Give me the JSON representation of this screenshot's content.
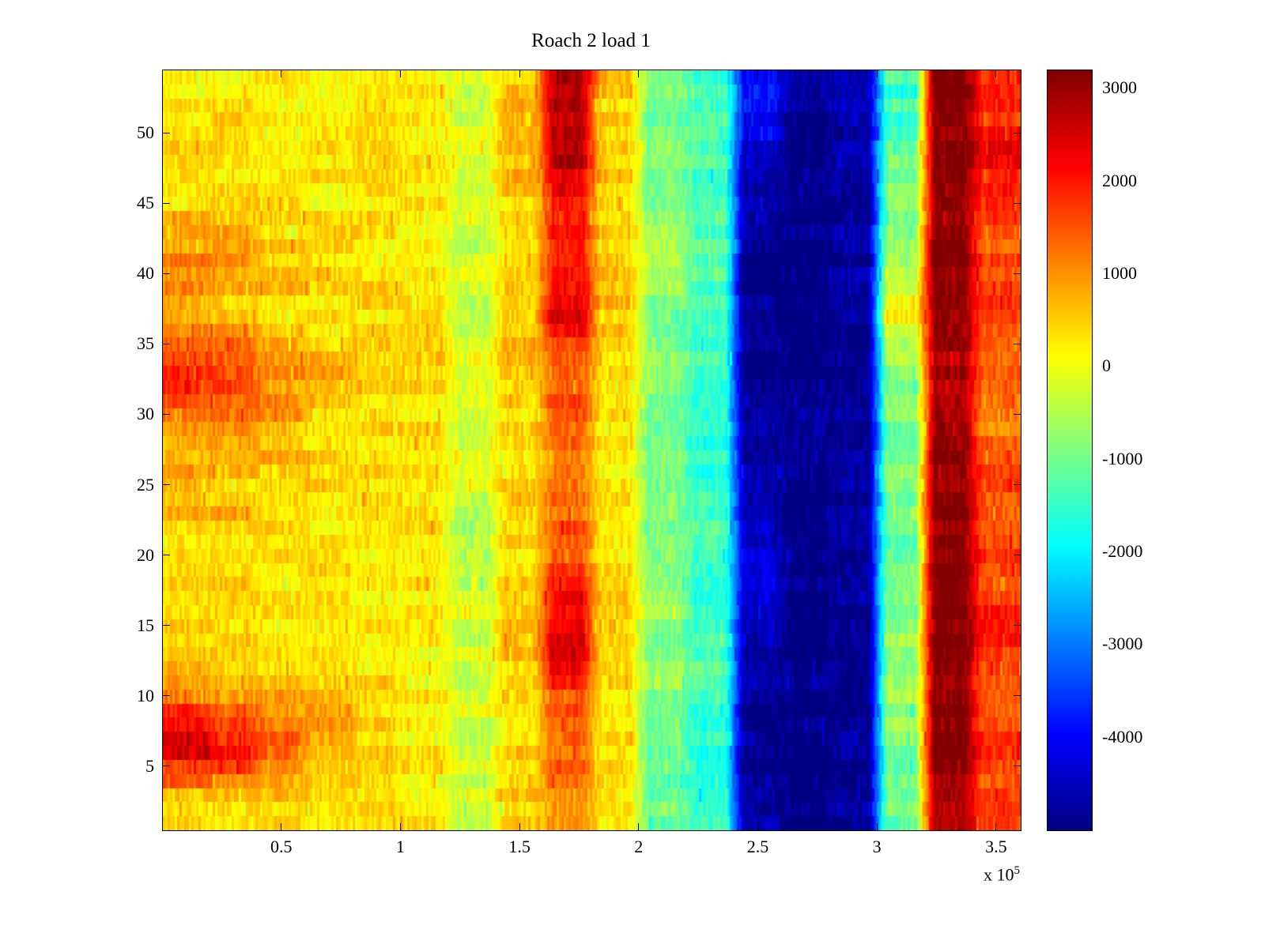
{
  "figure": {
    "background": "#ffffff"
  },
  "chart_data": {
    "type": "heatmap",
    "title": "Roach 2 load 1",
    "colormap": "jet",
    "x_axis": {
      "range_1e5": [
        0,
        3.6
      ],
      "tick_values_1e5": [
        0.5,
        1,
        1.5,
        2,
        2.5,
        3,
        3.5
      ],
      "tick_labels": [
        "0.5",
        "1",
        "1.5",
        "2",
        "2.5",
        "3",
        "3.5"
      ],
      "scale_label_base": "x 10",
      "scale_label_exp": "5"
    },
    "y_axis": {
      "range": [
        0.5,
        54.5
      ],
      "tick_values": [
        5,
        10,
        15,
        20,
        25,
        30,
        35,
        40,
        45,
        50
      ],
      "tick_labels": [
        "5",
        "10",
        "15",
        "20",
        "25",
        "30",
        "35",
        "40",
        "45",
        "50"
      ]
    },
    "colorbar": {
      "vmin": -5000,
      "vmax": 3200,
      "tick_values": [
        3000,
        2000,
        1000,
        0,
        -1000,
        -2000,
        -3000,
        -4000
      ],
      "tick_labels": [
        "3000",
        "2000",
        "1000",
        "0",
        "-1000",
        "-2000",
        "-3000",
        "-4000"
      ]
    },
    "grid": {
      "rows_order": "top-to-bottom",
      "x_centers_1e5": [
        0.1,
        0.3,
        0.5,
        0.7,
        0.9,
        1.1,
        1.3,
        1.5,
        1.7,
        1.9,
        2.1,
        2.3,
        2.5,
        2.7,
        2.9,
        3.1,
        3.3,
        3.5
      ],
      "y_centers": [
        52.6,
        48.7,
        44.9,
        41.0,
        37.1,
        33.3,
        29.4,
        25.6,
        21.7,
        17.9,
        14.0,
        10.1,
        6.3,
        2.4
      ],
      "values": [
        [
          300,
          350,
          300,
          250,
          300,
          250,
          -200,
          700,
          2600,
          500,
          -1000,
          -1500,
          -3800,
          -4800,
          -4600,
          -1500,
          3200,
          1800
        ],
        [
          400,
          350,
          300,
          300,
          250,
          200,
          -300,
          600,
          2900,
          600,
          -900,
          -1400,
          -4200,
          -5000,
          -4700,
          -1200,
          3200,
          2200
        ],
        [
          350,
          400,
          300,
          250,
          200,
          250,
          -300,
          500,
          2000,
          400,
          -800,
          -1300,
          -4800,
          -5000,
          -4800,
          -900,
          3100,
          1600
        ],
        [
          1200,
          1000,
          700,
          500,
          400,
          300,
          -200,
          600,
          1800,
          500,
          -700,
          -1200,
          -5000,
          -5000,
          -4800,
          -600,
          3200,
          1500
        ],
        [
          600,
          500,
          400,
          350,
          300,
          250,
          -300,
          700,
          2400,
          600,
          -800,
          -1300,
          -4900,
          -5000,
          -4800,
          200,
          3200,
          1700
        ],
        [
          2000,
          1800,
          1200,
          800,
          500,
          400,
          -100,
          500,
          1500,
          300,
          -900,
          -1500,
          -5000,
          -5000,
          -4900,
          -800,
          2900,
          1400
        ],
        [
          1100,
          900,
          700,
          500,
          400,
          300,
          -200,
          400,
          1600,
          300,
          -1100,
          -1600,
          -4700,
          -5000,
          -4800,
          -1000,
          3000,
          1300
        ],
        [
          700,
          600,
          500,
          400,
          350,
          300,
          -300,
          400,
          1300,
          300,
          -1000,
          -1500,
          -4600,
          -5000,
          -4800,
          -900,
          3100,
          1500
        ],
        [
          500,
          450,
          400,
          350,
          300,
          250,
          -400,
          400,
          1500,
          300,
          -1000,
          -1400,
          -4300,
          -5000,
          -4800,
          -1100,
          3200,
          1600
        ],
        [
          450,
          400,
          350,
          300,
          300,
          250,
          -400,
          500,
          1800,
          400,
          -900,
          -1400,
          -4400,
          -5000,
          -4800,
          -1000,
          3200,
          1700
        ],
        [
          400,
          350,
          300,
          300,
          250,
          200,
          -300,
          600,
          2600,
          500,
          -800,
          -1300,
          -4700,
          -5000,
          -4800,
          -800,
          3200,
          2000
        ],
        [
          1300,
          1100,
          900,
          700,
          400,
          300,
          -200,
          500,
          1600,
          400,
          -900,
          -1400,
          -4800,
          -5000,
          -4900,
          -700,
          3100,
          1500
        ],
        [
          2500,
          2300,
          1700,
          900,
          500,
          300,
          -200,
          500,
          1400,
          300,
          -1200,
          -1600,
          -4900,
          -5000,
          -4800,
          -900,
          3200,
          1800
        ],
        [
          500,
          400,
          350,
          300,
          300,
          250,
          -300,
          400,
          1200,
          300,
          -1100,
          -1500,
          -4700,
          -5000,
          -4800,
          -1000,
          3000,
          1600
        ]
      ]
    }
  }
}
